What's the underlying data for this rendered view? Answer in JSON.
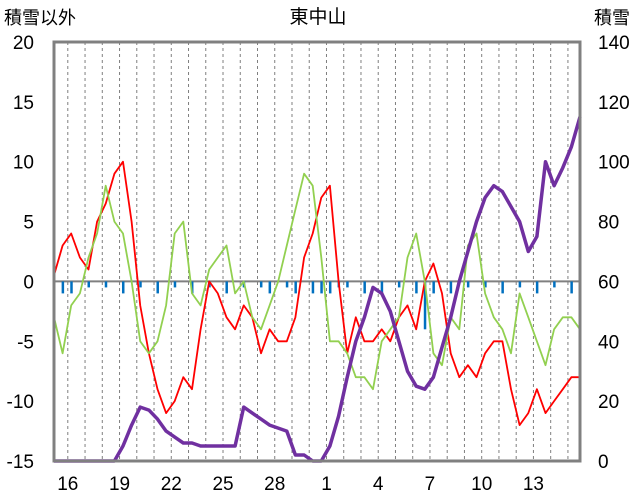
{
  "chart_data": {
    "type": "line",
    "title": "東中山",
    "ylabel_left": "積雪以外",
    "ylabel_right": "積雪",
    "ylim_left": [
      -15,
      20
    ],
    "ylim_right": [
      0,
      140
    ],
    "yticks_left": [
      "20",
      "15",
      "10",
      "5",
      "0",
      "-5",
      "-10",
      "-15"
    ],
    "yticks_right": [
      "140",
      "120",
      "100",
      "80",
      "60",
      "40",
      "20",
      "0"
    ],
    "xticks": [
      "16",
      "19",
      "22",
      "25",
      "28",
      "1",
      "4",
      "7",
      "10",
      "13"
    ],
    "grid": "vertical dashed",
    "colors": {
      "red_series": "#ff0000",
      "green_series": "#92d050",
      "purple_series": "#7030a0",
      "blue_bars": "#0070c0",
      "frame": "#808080",
      "zero_line": "#808080"
    },
    "series": [
      {
        "axis": "left",
        "color": "red",
        "x": [
          0,
          0.5,
          1,
          1.5,
          2,
          2.5,
          3,
          3.5,
          4,
          4.5,
          5,
          5.5,
          6,
          6.5,
          7,
          7.5,
          8,
          8.5,
          9,
          9.5,
          10,
          10.5,
          11,
          11.5,
          12,
          12.5,
          13,
          13.5,
          14,
          14.5,
          15,
          15.5,
          16,
          16.5,
          17,
          17.5,
          18,
          18.5,
          19,
          19.5,
          20,
          20.5,
          21,
          21.5,
          22,
          22.5,
          23,
          23.5,
          24,
          24.5,
          25,
          25.5,
          26,
          26.5,
          27,
          27.5,
          28,
          28.5,
          29,
          29.5,
          30,
          30.5
        ],
        "values": [
          0.5,
          3,
          4,
          2,
          1,
          5,
          6.5,
          9,
          10,
          5,
          -2,
          -6,
          -9,
          -11,
          -10,
          -8,
          -9,
          -4,
          0,
          -1,
          -3,
          -4,
          -2,
          -3,
          -6,
          -4,
          -5,
          -5,
          -3,
          2,
          4,
          7,
          8,
          0,
          -6,
          -3,
          -5,
          -5,
          -4,
          -5,
          -3,
          -2,
          -4,
          0,
          1.5,
          -1,
          -6,
          -8,
          -7,
          -8,
          -6,
          -5,
          -5,
          -9,
          -12,
          -11,
          -9,
          -11,
          -10,
          -9,
          -8,
          -8
        ]
      },
      {
        "axis": "left",
        "color": "green",
        "x": [
          0,
          0.5,
          1,
          1.5,
          2,
          2.5,
          3,
          3.5,
          4,
          4.5,
          5,
          5.5,
          6,
          6.5,
          7,
          7.5,
          8,
          8.5,
          9,
          9.5,
          10,
          10.5,
          11,
          11.5,
          12,
          12.5,
          13,
          13.5,
          14,
          14.5,
          15,
          15.5,
          16,
          16.5,
          17,
          17.5,
          18,
          18.5,
          19,
          19.5,
          20,
          20.5,
          21,
          21.5,
          22,
          22.5,
          23,
          23.5,
          24,
          24.5,
          25,
          25.5,
          26,
          26.5,
          27,
          27.5,
          28,
          28.5,
          29,
          29.5,
          30,
          30.5
        ],
        "values": [
          -3,
          -6,
          -2,
          -1,
          2,
          4,
          8,
          5,
          4,
          0,
          -5,
          -6,
          -5,
          -2,
          4,
          5,
          -1,
          -2,
          1,
          2,
          3,
          -1,
          0,
          -3,
          -4,
          -2,
          0,
          3,
          6,
          9,
          8,
          2,
          -5,
          -5,
          -6,
          -8,
          -8,
          -9,
          -5,
          -4,
          -3,
          2,
          4,
          0,
          -6,
          -7,
          -3,
          -4,
          3,
          4,
          -1,
          -3,
          -4,
          -6,
          -1,
          -3,
          -5,
          -7,
          -4,
          -3,
          -3,
          -4
        ]
      },
      {
        "axis": "right",
        "color": "purple",
        "x": [
          0,
          1,
          2,
          3,
          3.5,
          4,
          4.5,
          5,
          5.5,
          6,
          6.5,
          7,
          7.5,
          8,
          8.5,
          9,
          9.5,
          10,
          10.5,
          11,
          11.5,
          12,
          12.5,
          13,
          13.5,
          14,
          14.5,
          15,
          15.5,
          16,
          16.5,
          17,
          17.5,
          18,
          18.5,
          19,
          19.5,
          20,
          20.5,
          21,
          21.5,
          22,
          22.5,
          23,
          23.5,
          24,
          24.5,
          25,
          25.5,
          26,
          26.5,
          27,
          27.5,
          28,
          28.5,
          29,
          29.5,
          30,
          30.5
        ],
        "values": [
          0,
          0,
          0,
          0,
          0,
          5,
          12,
          18,
          17,
          14,
          10,
          8,
          6,
          6,
          5,
          5,
          5,
          5,
          5,
          18,
          16,
          14,
          12,
          11,
          10,
          2,
          2,
          0,
          0,
          5,
          15,
          28,
          40,
          48,
          58,
          56,
          50,
          40,
          30,
          25,
          24,
          28,
          38,
          48,
          60,
          70,
          80,
          88,
          92,
          90,
          85,
          80,
          70,
          75,
          100,
          92,
          98,
          105,
          115
        ]
      },
      {
        "axis": "left",
        "color": "blue",
        "type": "bar",
        "x": [
          0.5,
          1,
          2,
          3,
          4,
          5,
          6,
          7,
          8,
          9,
          10,
          11,
          12,
          12.5,
          13.5,
          14,
          15,
          15.5,
          16,
          16.5,
          17,
          18,
          19,
          20,
          21,
          21.5,
          22,
          23,
          24,
          25,
          26,
          27,
          28,
          29,
          30
        ],
        "values": [
          -1,
          -1,
          -0.5,
          -0.5,
          -1,
          -0.5,
          -1,
          -0.5,
          -1,
          -0.5,
          -1,
          -0.5,
          -0.5,
          -1,
          -0.5,
          -1,
          -1,
          -1,
          -1,
          -0.5,
          -0.5,
          -1,
          -1,
          -0.5,
          -1,
          -4,
          -1,
          -1,
          -0.5,
          -0.5,
          -1,
          -0.5,
          -1,
          -0.5,
          -1
        ]
      }
    ]
  }
}
